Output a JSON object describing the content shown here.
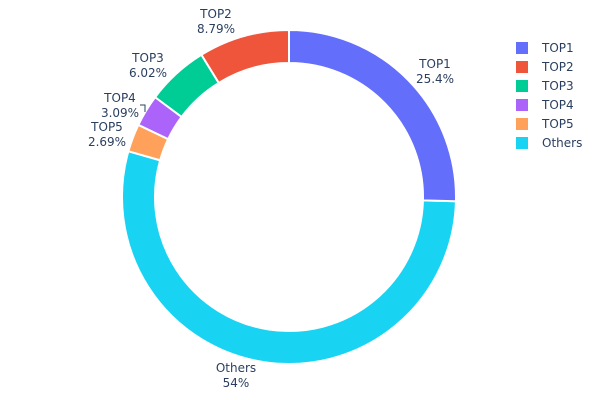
{
  "chart_data": {
    "type": "pie",
    "hole": true,
    "labels": [
      "TOP1",
      "TOP2",
      "TOP3",
      "TOP4",
      "TOP5",
      "Others"
    ],
    "values": [
      25.4,
      8.79,
      6.02,
      3.09,
      2.69,
      54
    ],
    "value_labels": [
      "25.4%",
      "8.79%",
      "6.02%",
      "3.09%",
      "2.69%",
      "54%"
    ],
    "colors": [
      "#636efa",
      "#ef553b",
      "#00cc96",
      "#ab63fa",
      "#ffa15a",
      "#19d3f3"
    ],
    "draw_order_clockwise_from_top": [
      "TOP1",
      "Others",
      "TOP5",
      "TOP4",
      "TOP3",
      "TOP2"
    ],
    "legend_position": "top-right"
  }
}
